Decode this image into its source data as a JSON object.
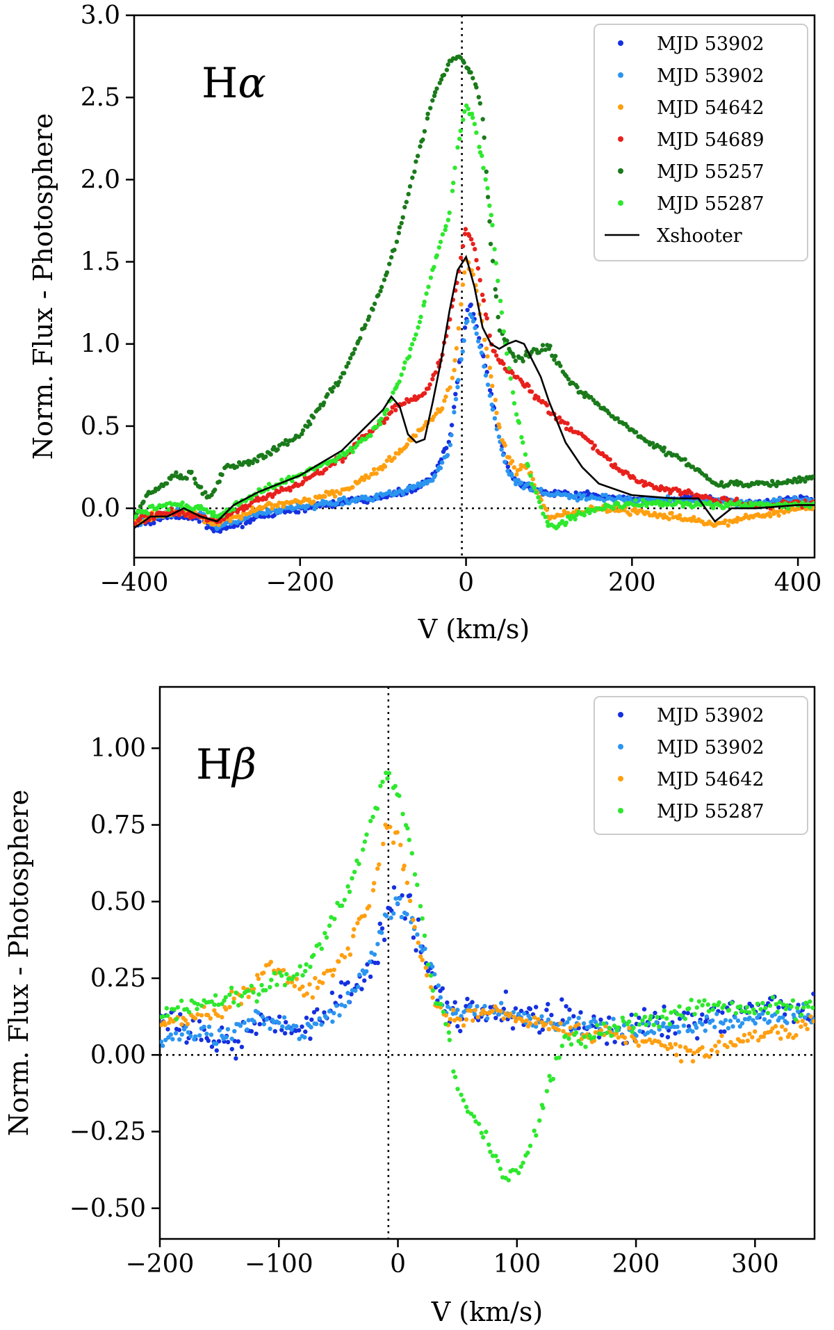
{
  "figure": {
    "background": "#ffffff"
  },
  "chart_data": [
    {
      "type": "scatter",
      "panel": "top",
      "title": "Hα",
      "title_parts": [
        "H",
        "α"
      ],
      "xlabel": "V (km/s)",
      "ylabel": "Norm. Flux - Photosphere",
      "xlim": [
        -400,
        420
      ],
      "ylim": [
        -0.3,
        3.0
      ],
      "xticks": [
        -400,
        -200,
        0,
        200,
        400
      ],
      "xtick_labels": [
        "−400",
        "−200",
        "0",
        "200",
        "400"
      ],
      "yticks": [
        0.0,
        0.5,
        1.0,
        1.5,
        2.0,
        2.5,
        3.0
      ],
      "ytick_labels": [
        "0.0",
        "0.5",
        "1.0",
        "1.5",
        "2.0",
        "2.5",
        "3.0"
      ],
      "reference_lines": {
        "vertical_x": -5,
        "horizontal_y": 0
      },
      "legend_position": "top-right",
      "series": [
        {
          "name": "MJD 53902",
          "kind": "points",
          "color": "#1530e0",
          "x": [
            -400,
            -380,
            -350,
            -320,
            -300,
            -250,
            -200,
            -150,
            -100,
            -60,
            -40,
            -20,
            -10,
            0,
            5,
            10,
            20,
            30,
            40,
            50,
            60,
            80,
            100,
            130,
            160,
            200,
            250,
            300,
            350,
            400,
            420
          ],
          "y": [
            -0.1,
            -0.08,
            -0.04,
            -0.06,
            -0.15,
            -0.05,
            0.0,
            0.03,
            0.07,
            0.12,
            0.2,
            0.4,
            0.8,
            1.15,
            1.25,
            1.15,
            0.95,
            0.7,
            0.45,
            0.25,
            0.17,
            0.12,
            0.1,
            0.08,
            0.07,
            0.06,
            0.05,
            0.05,
            0.03,
            0.06,
            0.05
          ]
        },
        {
          "name": "MJD 53902",
          "kind": "points",
          "color": "#2b95f0",
          "x": [
            -400,
            -380,
            -350,
            -320,
            -300,
            -250,
            -200,
            -150,
            -100,
            -60,
            -40,
            -20,
            -10,
            0,
            5,
            10,
            20,
            30,
            40,
            50,
            60,
            80,
            100,
            130,
            160,
            200,
            250,
            300,
            350,
            400,
            420
          ],
          "y": [
            -0.1,
            -0.06,
            -0.02,
            -0.04,
            -0.12,
            -0.03,
            0.01,
            0.04,
            0.08,
            0.13,
            0.18,
            0.35,
            0.75,
            1.1,
            1.2,
            1.12,
            0.92,
            0.65,
            0.42,
            0.23,
            0.16,
            0.12,
            0.09,
            0.07,
            0.06,
            0.05,
            0.05,
            0.04,
            0.03,
            0.05,
            0.04
          ]
        },
        {
          "name": "MJD 54642",
          "kind": "points",
          "color": "#ff9f10",
          "x": [
            -400,
            -380,
            -350,
            -320,
            -300,
            -250,
            -200,
            -150,
            -100,
            -70,
            -50,
            -30,
            -15,
            -5,
            0,
            10,
            20,
            30,
            40,
            50,
            60,
            70,
            80,
            90,
            100,
            130,
            160,
            200,
            250,
            300,
            350,
            400,
            420
          ],
          "y": [
            -0.1,
            -0.05,
            -0.02,
            -0.05,
            -0.1,
            0.0,
            0.04,
            0.1,
            0.25,
            0.4,
            0.5,
            0.6,
            0.8,
            1.3,
            1.52,
            1.4,
            1.1,
            0.8,
            0.5,
            0.32,
            0.22,
            0.26,
            0.18,
            0.05,
            -0.05,
            -0.03,
            0.0,
            -0.02,
            -0.05,
            -0.1,
            -0.05,
            0.0,
            0.0
          ]
        },
        {
          "name": "MJD 54689",
          "kind": "points",
          "color": "#e8201c",
          "x": [
            -400,
            -380,
            -350,
            -320,
            -300,
            -250,
            -200,
            -150,
            -120,
            -100,
            -90,
            -70,
            -50,
            -30,
            -10,
            0,
            10,
            20,
            30,
            40,
            60,
            80,
            100,
            120,
            150,
            180,
            200,
            230,
            260,
            300,
            350,
            400,
            420
          ],
          "y": [
            -0.08,
            -0.05,
            -0.02,
            -0.05,
            -0.08,
            0.05,
            0.15,
            0.3,
            0.45,
            0.52,
            0.6,
            0.65,
            0.7,
            0.9,
            1.4,
            1.7,
            1.6,
            1.3,
            1.0,
            0.9,
            0.8,
            0.7,
            0.6,
            0.5,
            0.4,
            0.25,
            0.18,
            0.13,
            0.1,
            0.05,
            0.02,
            0.03,
            0.02
          ]
        },
        {
          "name": "MJD 55257",
          "kind": "points",
          "color": "#1a7a1a",
          "x": [
            -400,
            -380,
            -350,
            -330,
            -310,
            -290,
            -250,
            -200,
            -150,
            -100,
            -80,
            -60,
            -40,
            -20,
            -10,
            0,
            10,
            20,
            30,
            40,
            50,
            60,
            80,
            100,
            120,
            140,
            180,
            220,
            260,
            300,
            340,
            380,
            420
          ],
          "y": [
            -0.05,
            0.1,
            0.2,
            0.2,
            0.05,
            0.25,
            0.3,
            0.45,
            0.8,
            1.35,
            1.7,
            2.1,
            2.5,
            2.72,
            2.75,
            2.7,
            2.6,
            2.4,
            1.6,
            1.1,
            1.0,
            0.9,
            0.95,
            0.98,
            0.8,
            0.7,
            0.55,
            0.4,
            0.3,
            0.15,
            0.15,
            0.15,
            0.2
          ]
        },
        {
          "name": "MJD 55287",
          "kind": "points",
          "color": "#2de82d",
          "x": [
            -400,
            -380,
            -350,
            -320,
            -300,
            -250,
            -200,
            -150,
            -120,
            -100,
            -80,
            -60,
            -40,
            -20,
            -10,
            0,
            10,
            20,
            30,
            40,
            50,
            60,
            70,
            80,
            90,
            100,
            110,
            120,
            130,
            160,
            200,
            250,
            300,
            350,
            400,
            420
          ],
          "y": [
            -0.05,
            0.0,
            0.02,
            0.0,
            -0.05,
            0.1,
            0.2,
            0.32,
            0.42,
            0.55,
            0.78,
            1.05,
            1.45,
            1.8,
            2.2,
            2.45,
            2.35,
            2.1,
            1.8,
            1.3,
            0.9,
            0.6,
            0.35,
            0.15,
            0.0,
            -0.1,
            -0.11,
            -0.08,
            -0.05,
            0.0,
            0.03,
            0.03,
            0.02,
            0.02,
            0.02,
            0.02
          ]
        },
        {
          "name": "Xshooter",
          "kind": "line",
          "color": "#000000",
          "x": [
            -400,
            -380,
            -360,
            -340,
            -320,
            -300,
            -280,
            -250,
            -200,
            -150,
            -120,
            -100,
            -90,
            -80,
            -70,
            -60,
            -50,
            -40,
            -30,
            -20,
            -10,
            0,
            10,
            20,
            30,
            40,
            50,
            60,
            70,
            80,
            90,
            100,
            120,
            140,
            160,
            200,
            250,
            280,
            300,
            320,
            350,
            400,
            420
          ],
          "y": [
            -0.12,
            -0.05,
            -0.05,
            0.0,
            -0.05,
            -0.08,
            0.02,
            0.1,
            0.2,
            0.35,
            0.5,
            0.6,
            0.68,
            0.62,
            0.45,
            0.4,
            0.42,
            0.65,
            0.9,
            1.2,
            1.45,
            1.53,
            1.35,
            1.1,
            1.0,
            0.97,
            1.0,
            1.02,
            1.0,
            0.9,
            0.8,
            0.65,
            0.4,
            0.25,
            0.15,
            0.08,
            0.06,
            0.06,
            -0.08,
            0.0,
            0.0,
            0.02,
            0.02
          ]
        }
      ]
    },
    {
      "type": "scatter",
      "panel": "bottom",
      "title": "Hβ",
      "title_parts": [
        "H",
        "β"
      ],
      "xlabel": "V (km/s)",
      "ylabel": "Norm. Flux - Photosphere",
      "xlim": [
        -200,
        350
      ],
      "ylim": [
        -0.6,
        1.2
      ],
      "xticks": [
        -200,
        -100,
        0,
        100,
        200,
        300
      ],
      "xtick_labels": [
        "−200",
        "−100",
        "0",
        "100",
        "200",
        "300"
      ],
      "yticks": [
        -0.5,
        -0.25,
        0.0,
        0.25,
        0.5,
        0.75,
        1.0
      ],
      "ytick_labels": [
        "−0.50",
        "−0.25",
        "0.00",
        "0.25",
        "0.50",
        "0.75",
        "1.00"
      ],
      "reference_lines": {
        "vertical_x": -8,
        "horizontal_y": 0
      },
      "legend_position": "top-right",
      "series": [
        {
          "name": "MJD 53902",
          "kind": "points",
          "color": "#1530e0",
          "noise": 0.07,
          "x": [
            -200,
            -180,
            -150,
            -120,
            -100,
            -80,
            -60,
            -40,
            -20,
            -10,
            -5,
            0,
            10,
            20,
            30,
            40,
            60,
            80,
            100,
            150,
            200,
            250,
            300,
            350
          ],
          "y": [
            0.1,
            0.08,
            0.05,
            0.08,
            0.1,
            0.1,
            0.15,
            0.2,
            0.3,
            0.45,
            0.5,
            0.5,
            0.45,
            0.35,
            0.25,
            0.15,
            0.15,
            0.15,
            0.13,
            0.1,
            0.1,
            0.12,
            0.15,
            0.15
          ]
        },
        {
          "name": "MJD 53902",
          "kind": "points",
          "color": "#2b95f0",
          "x": [
            -200,
            -180,
            -150,
            -120,
            -100,
            -80,
            -60,
            -40,
            -20,
            -10,
            0,
            10,
            20,
            30,
            40,
            60,
            80,
            100,
            150,
            200,
            250,
            300,
            350
          ],
          "y": [
            0.05,
            0.08,
            0.05,
            0.12,
            0.1,
            0.08,
            0.12,
            0.18,
            0.32,
            0.45,
            0.5,
            0.45,
            0.35,
            0.25,
            0.15,
            0.15,
            0.14,
            0.12,
            0.1,
            0.08,
            0.1,
            0.12,
            0.13
          ]
        },
        {
          "name": "MJD 54642",
          "kind": "points",
          "color": "#ff9f10",
          "x": [
            -200,
            -180,
            -150,
            -120,
            -110,
            -100,
            -80,
            -60,
            -40,
            -20,
            -10,
            0,
            10,
            20,
            30,
            40,
            60,
            80,
            100,
            150,
            200,
            250,
            300,
            350
          ],
          "y": [
            0.1,
            0.12,
            0.15,
            0.22,
            0.3,
            0.28,
            0.2,
            0.25,
            0.35,
            0.55,
            0.75,
            0.7,
            0.5,
            0.3,
            0.18,
            0.12,
            0.13,
            0.15,
            0.12,
            0.08,
            0.05,
            0.0,
            0.05,
            0.1
          ]
        },
        {
          "name": "MJD 55287",
          "kind": "points",
          "color": "#2de82d",
          "x": [
            -200,
            -180,
            -150,
            -120,
            -100,
            -80,
            -60,
            -40,
            -20,
            -10,
            0,
            10,
            20,
            30,
            40,
            50,
            60,
            70,
            80,
            90,
            100,
            110,
            120,
            130,
            140,
            150,
            170,
            200,
            250,
            300,
            350
          ],
          "y": [
            0.12,
            0.15,
            0.18,
            0.2,
            0.25,
            0.28,
            0.4,
            0.55,
            0.8,
            0.92,
            0.85,
            0.7,
            0.45,
            0.2,
            0.1,
            -0.1,
            -0.2,
            -0.25,
            -0.32,
            -0.4,
            -0.38,
            -0.32,
            -0.2,
            -0.05,
            0.05,
            0.05,
            0.08,
            0.1,
            0.15,
            0.15,
            0.15
          ]
        }
      ]
    }
  ]
}
